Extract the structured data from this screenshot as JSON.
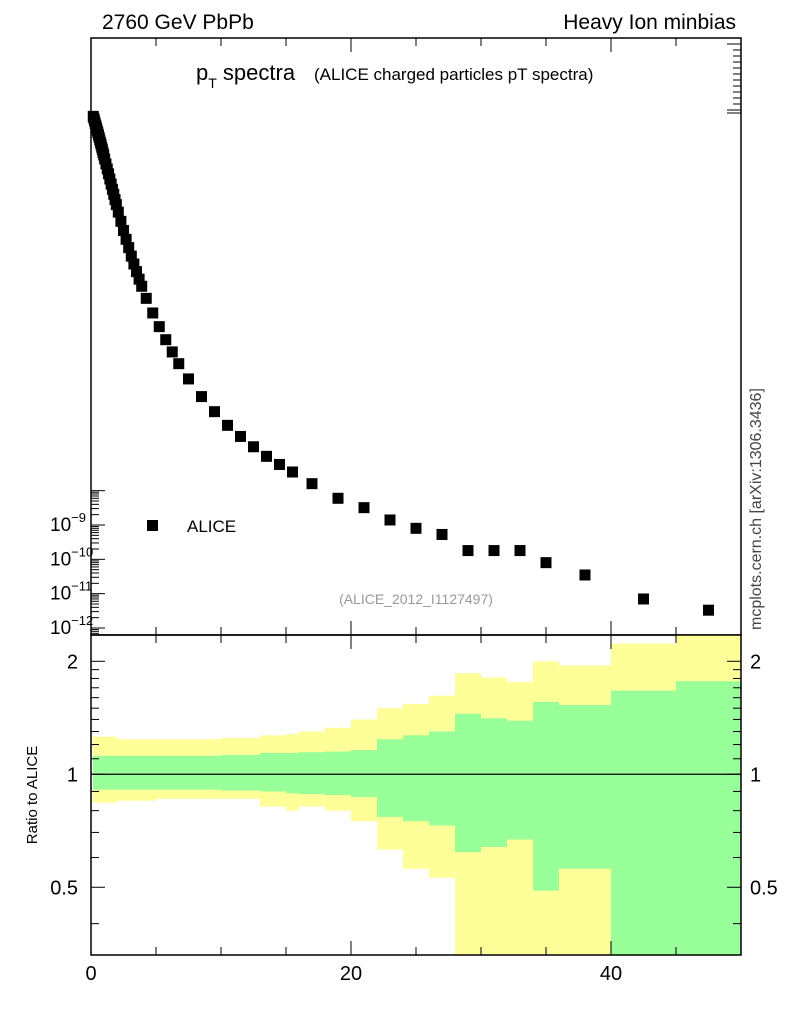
{
  "header": {
    "left": "2760 GeV PbPb",
    "right": "Heavy Ion minbias"
  },
  "title": {
    "main_p": "p",
    "main_sub": "T",
    "main_rest": " spectra",
    "paren": "(ALICE charged particles pT spectra)"
  },
  "analysis_id": "(ALICE_2012_I1127497)",
  "side_label": "mcplots.cern.ch [arXiv:1306.3436]",
  "colors": {
    "data": "#000000",
    "band_outer": "#ffff99",
    "band_inner": "#99ff99"
  },
  "chart_data": [
    {
      "type": "scatter",
      "name": "main",
      "ylog": true,
      "xlim": [
        0,
        50
      ],
      "y_ticks": [
        {
          "base": "10",
          "exp": "−9",
          "value": 1e-09
        },
        {
          "base": "10",
          "exp": "−10",
          "value": 1e-10
        },
        {
          "base": "10",
          "exp": "−11",
          "value": 1e-11
        },
        {
          "base": "10",
          "exp": "−12",
          "value": 1e-12
        }
      ],
      "legend": [
        {
          "name": "ALICE",
          "marker": "square",
          "placement": "lower-left"
        }
      ],
      "series": [
        {
          "name": "ALICE",
          "x": [
            0.175,
            0.225,
            0.275,
            0.325,
            0.375,
            0.425,
            0.475,
            0.525,
            0.575,
            0.625,
            0.675,
            0.725,
            0.775,
            0.825,
            0.875,
            0.925,
            0.975,
            1.05,
            1.15,
            1.25,
            1.35,
            1.45,
            1.55,
            1.65,
            1.75,
            1.85,
            1.95,
            2.1,
            2.3,
            2.5,
            2.7,
            2.9,
            3.1,
            3.3,
            3.5,
            3.7,
            3.9,
            4.25,
            4.75,
            5.25,
            5.75,
            6.25,
            6.75,
            7.5,
            8.5,
            9.5,
            10.5,
            11.5,
            12.5,
            13.5,
            14.5,
            15.5,
            17,
            19,
            21,
            23,
            25,
            27,
            29,
            31,
            33,
            35,
            38,
            42.5,
            47.5
          ],
          "y": [
            800.0,
            690.0,
            590.0,
            500.0,
            430.0,
            370.0,
            315.0,
            270.0,
            230.0,
            195.0,
            165.0,
            140.0,
            120.0,
            100.0,
            85.0,
            71.0,
            60.0,
            46.0,
            33.0,
            23.5,
            17.0,
            12.0,
            8.5,
            6,
            4.3,
            3,
            2.15,
            1.3,
            0.7,
            0.38,
            0.21,
            0.12,
            0.068,
            0.04,
            0.024,
            0.0145,
            0.009,
            0.004,
            0.0015,
            0.0006,
            0.00025,
            0.00011,
            5e-05,
            1.8e-05,
            5.5e-06,
            2e-06,
            8e-07,
            3.8e-07,
            1.9e-07,
            1e-07,
            5.8e-08,
            3.5e-08,
            1.6e-08,
            6e-09,
            3.2e-09,
            1.4e-09,
            8e-10,
            5.3e-10,
            1.8e-10,
            1.8e-10,
            1.8e-10,
            8e-11,
            3.5e-11,
            7e-12,
            3.3e-12
          ]
        }
      ]
    },
    {
      "type": "area",
      "name": "ratio",
      "ylabel": "Ratio to ALICE",
      "xlim": [
        0,
        50
      ],
      "ylim": [
        0.33,
        2.35
      ],
      "x_ticks": [
        0,
        20,
        40
      ],
      "y_ticks": [
        0.5,
        1,
        2
      ],
      "reference_line": 1,
      "bins": [
        {
          "lo": 0.15,
          "hi": 2,
          "inner": [
            0.91,
            1.12
          ],
          "outer": [
            0.84,
            1.26
          ]
        },
        {
          "lo": 2,
          "hi": 5,
          "inner": [
            0.91,
            1.12
          ],
          "outer": [
            0.85,
            1.24
          ]
        },
        {
          "lo": 5,
          "hi": 10,
          "inner": [
            0.91,
            1.12
          ],
          "outer": [
            0.86,
            1.24
          ]
        },
        {
          "lo": 10,
          "hi": 13,
          "inner": [
            0.905,
            1.125
          ],
          "outer": [
            0.86,
            1.25
          ]
        },
        {
          "lo": 13,
          "hi": 15,
          "inner": [
            0.9,
            1.14
          ],
          "outer": [
            0.82,
            1.27
          ]
        },
        {
          "lo": 15,
          "hi": 16,
          "inner": [
            0.89,
            1.14
          ],
          "outer": [
            0.8,
            1.28
          ]
        },
        {
          "lo": 16,
          "hi": 18,
          "inner": [
            0.885,
            1.145
          ],
          "outer": [
            0.82,
            1.3
          ]
        },
        {
          "lo": 18,
          "hi": 20,
          "inner": [
            0.88,
            1.15
          ],
          "outer": [
            0.8,
            1.33
          ]
        },
        {
          "lo": 20,
          "hi": 22,
          "inner": [
            0.87,
            1.16
          ],
          "outer": [
            0.75,
            1.4
          ]
        },
        {
          "lo": 22,
          "hi": 24,
          "inner": [
            0.77,
            1.24
          ],
          "outer": [
            0.63,
            1.5
          ]
        },
        {
          "lo": 24,
          "hi": 26,
          "inner": [
            0.75,
            1.27
          ],
          "outer": [
            0.56,
            1.54
          ]
        },
        {
          "lo": 26,
          "hi": 28,
          "inner": [
            0.73,
            1.3
          ],
          "outer": [
            0.53,
            1.62
          ]
        },
        {
          "lo": 28,
          "hi": 30,
          "inner": [
            0.62,
            1.45
          ],
          "outer": [
            0.33,
            1.86
          ]
        },
        {
          "lo": 30,
          "hi": 32,
          "inner": [
            0.64,
            1.41
          ],
          "outer": [
            0.33,
            1.81
          ]
        },
        {
          "lo": 32,
          "hi": 34,
          "inner": [
            0.67,
            1.39
          ],
          "outer": [
            0.33,
            1.76
          ]
        },
        {
          "lo": 34,
          "hi": 36,
          "inner": [
            0.49,
            1.56
          ],
          "outer": [
            0.33,
            2.0
          ]
        },
        {
          "lo": 36,
          "hi": 40,
          "inner": [
            0.56,
            1.53
          ],
          "outer": [
            0.33,
            1.95
          ]
        },
        {
          "lo": 40,
          "hi": 45,
          "inner": [
            0.33,
            1.67
          ],
          "outer": [
            0.33,
            2.23
          ]
        },
        {
          "lo": 45,
          "hi": 50,
          "inner": [
            0.33,
            1.77
          ],
          "outer": [
            0.33,
            2.35
          ]
        }
      ]
    }
  ]
}
